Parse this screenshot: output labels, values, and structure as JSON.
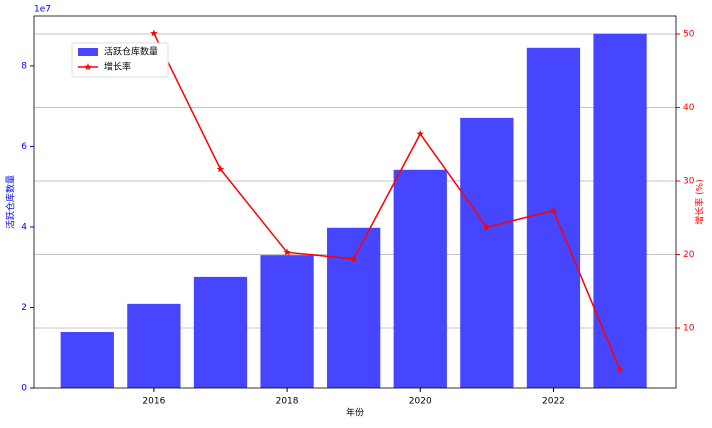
{
  "chart_data": {
    "type": "bar-line",
    "x": [
      2015,
      2016,
      2017,
      2018,
      2019,
      2020,
      2021,
      2022,
      2023
    ],
    "xlabel": "年份",
    "ylabel": "活跃仓库数量",
    "y2label": "增长率 (%)",
    "y_offset_label": "1e7",
    "xlim": [
      2014.2,
      2023.84
    ],
    "xticks": [
      2016,
      2018,
      2020,
      2022
    ],
    "ylim": [
      0,
      92400000
    ],
    "yticks": [
      {
        "value": 0,
        "label": "0"
      },
      {
        "value": 20000000,
        "label": "2"
      },
      {
        "value": 40000000,
        "label": "4"
      },
      {
        "value": 60000000,
        "label": "6"
      },
      {
        "value": 80000000,
        "label": "8"
      }
    ],
    "y2lim": [
      1.84,
      52.45
    ],
    "y2ticks": [
      10,
      20,
      30,
      40,
      50
    ],
    "grid": "y2",
    "legend": "upper left",
    "series": [
      {
        "name": "活跃仓库数量",
        "type": "bar",
        "axis": "y",
        "color": "#4646ff",
        "values": [
          13900000,
          20900000,
          27600000,
          33000000,
          39800000,
          54200000,
          67100000,
          84500000,
          88000000
        ]
      },
      {
        "name": "增长率",
        "type": "line",
        "axis": "y2",
        "color": "#ff0000",
        "values": [
          null,
          50.1,
          31.6,
          20.3,
          19.4,
          36.4,
          23.7,
          26.0,
          4.3
        ]
      }
    ]
  }
}
